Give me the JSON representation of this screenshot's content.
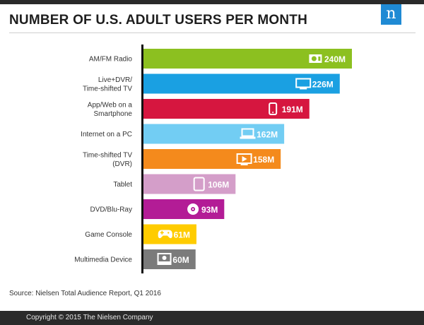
{
  "header": {
    "title": "NUMBER OF U.S. ADULT USERS PER MONTH",
    "logo_letter": "n"
  },
  "colors": {
    "brand": "#1f8ad4",
    "dark_band": "#2a2a2a",
    "axis": "#111111"
  },
  "chart_data": {
    "type": "bar",
    "orientation": "horizontal",
    "title": "NUMBER OF U.S. ADULT USERS PER MONTH",
    "categories": [
      [
        "AM/FM Radio"
      ],
      [
        "Live+DVR/",
        "Time-shifted TV"
      ],
      [
        "App/Web on a",
        "Smartphone"
      ],
      [
        "Internet on a PC"
      ],
      [
        "Time-shifted TV",
        "(DVR)"
      ],
      [
        "Tablet"
      ],
      [
        "DVD/Blu-Ray"
      ],
      [
        "Game Console"
      ],
      [
        "Multimedia Device"
      ]
    ],
    "values": [
      240,
      226,
      191,
      162,
      158,
      106,
      93,
      61,
      60
    ],
    "value_labels": [
      "240M",
      "226M",
      "191M",
      "162M",
      "158M",
      "106M",
      "93M",
      "61M",
      "60M"
    ],
    "unit": "M",
    "colors": [
      "#8cc020",
      "#1aa0e2",
      "#d6163f",
      "#72cdf3",
      "#f48a1c",
      "#d49ec9",
      "#b31c96",
      "#ffcc00",
      "#7b7b7b"
    ],
    "icons": [
      "radio-icon",
      "tv-icon",
      "smartphone-icon",
      "laptop-icon",
      "dvr-icon",
      "tablet-icon",
      "disc-icon",
      "gamepad-icon",
      "media-device-icon"
    ],
    "xlim": [
      0,
      240
    ],
    "xlabel": "",
    "ylabel": "",
    "grid": false,
    "legend": "none"
  },
  "source": "Source: Nielsen Total Audience Report, Q1 2016",
  "footer": {
    "copyright": "Copyright © 2015 The Nielsen Company"
  }
}
